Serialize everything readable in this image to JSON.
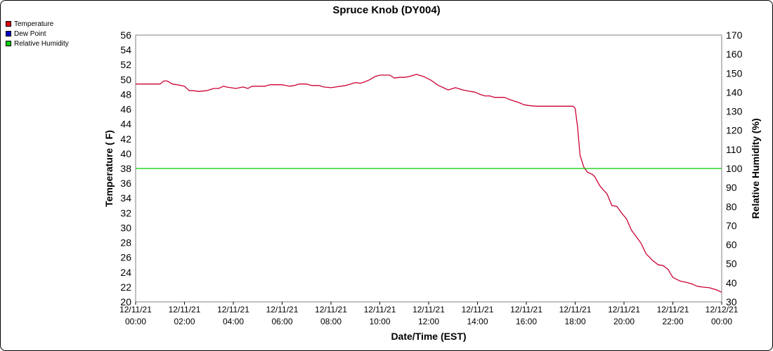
{
  "chart_data": {
    "type": "line",
    "title": "Spruce Knob (DY004)",
    "xlabel": "Date/Time (EST)",
    "ylabel": "Temperature ( F)",
    "y2label": "Relative Humidity (%)",
    "x_range_hours": [
      0,
      24
    ],
    "x_ticks": [
      {
        "date": "12/11/21",
        "time": "00:00"
      },
      {
        "date": "12/11/21",
        "time": "02:00"
      },
      {
        "date": "12/11/21",
        "time": "04:00"
      },
      {
        "date": "12/11/21",
        "time": "06:00"
      },
      {
        "date": "12/11/21",
        "time": "08:00"
      },
      {
        "date": "12/11/21",
        "time": "10:00"
      },
      {
        "date": "12/11/21",
        "time": "12:00"
      },
      {
        "date": "12/11/21",
        "time": "14:00"
      },
      {
        "date": "12/11/21",
        "time": "16:00"
      },
      {
        "date": "12/11/21",
        "time": "18:00"
      },
      {
        "date": "12/11/21",
        "time": "20:00"
      },
      {
        "date": "12/11/21",
        "time": "22:00"
      },
      {
        "date": "12/12/21",
        "time": "00:00"
      }
    ],
    "ylim": [
      20,
      56
    ],
    "y_ticks": [
      20,
      22,
      24,
      26,
      28,
      30,
      32,
      34,
      36,
      38,
      40,
      42,
      44,
      46,
      48,
      50,
      52,
      54,
      56
    ],
    "y2lim": [
      30,
      170
    ],
    "y2_ticks": [
      30,
      40,
      50,
      60,
      70,
      80,
      90,
      100,
      110,
      120,
      130,
      140,
      150,
      160,
      170
    ],
    "grid": true,
    "legend_position": "top-left",
    "series": [
      {
        "name": "Temperature",
        "color": "#cc0033",
        "swatch": "#e00000",
        "axis": "left",
        "x": [
          0,
          0.5,
          1.0,
          1.15,
          1.3,
          1.5,
          1.7,
          2.0,
          2.2,
          2.35,
          2.6,
          2.9,
          3.2,
          3.4,
          3.6,
          3.7,
          3.9,
          4.1,
          4.4,
          4.6,
          4.7,
          4.8,
          5.0,
          5.3,
          5.5,
          6.0,
          6.3,
          6.5,
          6.7,
          6.9,
          7.0,
          7.2,
          7.5,
          7.7,
          8.0,
          8.2,
          8.4,
          8.6,
          8.8,
          9.0,
          9.2,
          9.4,
          9.6,
          9.8,
          10.0,
          10.2,
          10.4,
          10.6,
          10.8,
          11.0,
          11.2,
          11.5,
          11.8,
          12.1,
          12.4,
          12.6,
          12.8,
          13.1,
          13.4,
          13.7,
          13.9,
          14.1,
          14.3,
          14.5,
          14.7,
          14.9,
          15.1,
          15.4,
          15.7,
          15.9,
          16.1,
          16.4,
          16.7,
          17.0,
          17.3,
          17.6,
          17.8,
          17.92,
          18.0,
          18.1,
          18.2,
          18.35,
          18.5,
          18.7,
          18.8,
          19.0,
          19.15,
          19.3,
          19.5,
          19.7,
          19.9,
          20.1,
          20.3,
          20.5,
          20.7,
          20.9,
          21.2,
          21.4,
          21.6,
          21.8,
          22.0,
          22.3,
          22.6,
          22.8,
          23.0,
          23.2,
          23.5,
          23.8,
          24.0
        ],
        "y": [
          49.4,
          49.4,
          49.4,
          49.8,
          49.8,
          49.4,
          49.3,
          49.1,
          48.5,
          48.5,
          48.4,
          48.5,
          48.8,
          48.8,
          49.1,
          49.0,
          48.9,
          48.8,
          49.0,
          48.8,
          49.0,
          49.1,
          49.1,
          49.1,
          49.3,
          49.3,
          49.1,
          49.2,
          49.4,
          49.4,
          49.4,
          49.2,
          49.2,
          49.0,
          48.9,
          49.0,
          49.1,
          49.2,
          49.4,
          49.6,
          49.5,
          49.7,
          50.0,
          50.4,
          50.6,
          50.6,
          50.6,
          50.2,
          50.3,
          50.3,
          50.4,
          50.7,
          50.4,
          49.9,
          49.2,
          48.9,
          48.6,
          48.9,
          48.6,
          48.4,
          48.3,
          48.0,
          47.8,
          47.8,
          47.6,
          47.6,
          47.6,
          47.2,
          46.9,
          46.6,
          46.5,
          46.4,
          46.4,
          46.4,
          46.4,
          46.4,
          46.4,
          46.4,
          46.1,
          43.5,
          39.8,
          38.2,
          37.5,
          37.2,
          36.9,
          35.7,
          35.1,
          34.6,
          33.0,
          32.9,
          32.0,
          31.2,
          29.7,
          28.8,
          27.9,
          26.5,
          25.5,
          25.0,
          24.9,
          24.4,
          23.3,
          22.8,
          22.6,
          22.4,
          22.1,
          22.0,
          21.9,
          21.6,
          21.3
        ]
      },
      {
        "name": "Dew Point",
        "color": "#0000cc",
        "swatch": "#0000cc",
        "axis": "left",
        "x": [],
        "y": []
      },
      {
        "name": "Relative Humidity",
        "color": "#00cc00",
        "swatch": "#00cc00",
        "axis": "right",
        "x": [
          0,
          24
        ],
        "y": [
          100,
          100
        ]
      }
    ]
  }
}
